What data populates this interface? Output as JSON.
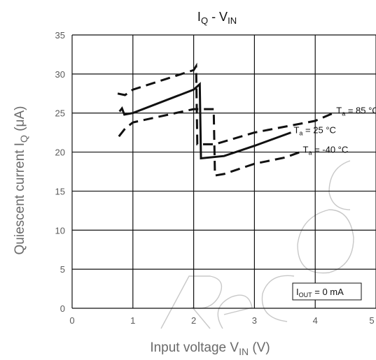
{
  "chart_data": {
    "type": "line",
    "title": {
      "main": "I",
      "main_sub": "Q",
      "sep": " - V",
      "sep_sub": "IN"
    },
    "xlabel": {
      "text": "Input voltage  V",
      "sub": "IN",
      "unit": "  (V)"
    },
    "ylabel": {
      "text": "Quiescent current  I",
      "sub": "Q",
      "unit": "  (μA)"
    },
    "xlim": [
      0,
      5
    ],
    "ylim": [
      0,
      35
    ],
    "xticks": [
      0,
      1,
      2,
      3,
      4,
      5
    ],
    "yticks": [
      0,
      5,
      10,
      15,
      20,
      25,
      30,
      35
    ],
    "grid": true,
    "annotation": {
      "prefix": "I",
      "sub": "OUT",
      "suffix": " = 0 mA"
    },
    "series": [
      {
        "name": {
          "prefix": "T",
          "sub": "a",
          "suffix": " = 85 °C"
        },
        "style": "dashed",
        "points": [
          [
            0.75,
            27.5
          ],
          [
            0.87,
            27.3
          ],
          [
            1.0,
            28.0
          ],
          [
            2.0,
            30.5
          ],
          [
            2.04,
            31.0
          ],
          [
            2.06,
            21.0
          ],
          [
            2.35,
            21.0
          ],
          [
            3.0,
            22.5
          ],
          [
            4.0,
            24.0
          ],
          [
            4.3,
            25.0
          ]
        ]
      },
      {
        "name": {
          "prefix": "T",
          "sub": "a",
          "suffix": " = 25 °C"
        },
        "style": "solid",
        "points": [
          [
            0.78,
            25.2
          ],
          [
            0.82,
            25.6
          ],
          [
            0.86,
            24.8
          ],
          [
            1.0,
            25.0
          ],
          [
            2.0,
            28.0
          ],
          [
            2.1,
            28.7
          ],
          [
            2.12,
            19.2
          ],
          [
            2.5,
            19.5
          ],
          [
            3.0,
            20.8
          ],
          [
            3.6,
            22.5
          ]
        ]
      },
      {
        "name": {
          "prefix": "T",
          "sub": "a",
          "suffix": " = -40 °C"
        },
        "style": "dashed",
        "points": [
          [
            0.77,
            22.0
          ],
          [
            0.87,
            23.0
          ],
          [
            1.0,
            23.8
          ],
          [
            2.0,
            25.5
          ],
          [
            2.33,
            25.5
          ],
          [
            2.35,
            17.0
          ],
          [
            2.5,
            17.2
          ],
          [
            3.0,
            18.5
          ],
          [
            3.5,
            19.3
          ],
          [
            3.75,
            20.0
          ]
        ]
      }
    ]
  },
  "colors": {
    "axis": "#111111",
    "series": "#111111",
    "watermark": "#c8c8c8"
  }
}
